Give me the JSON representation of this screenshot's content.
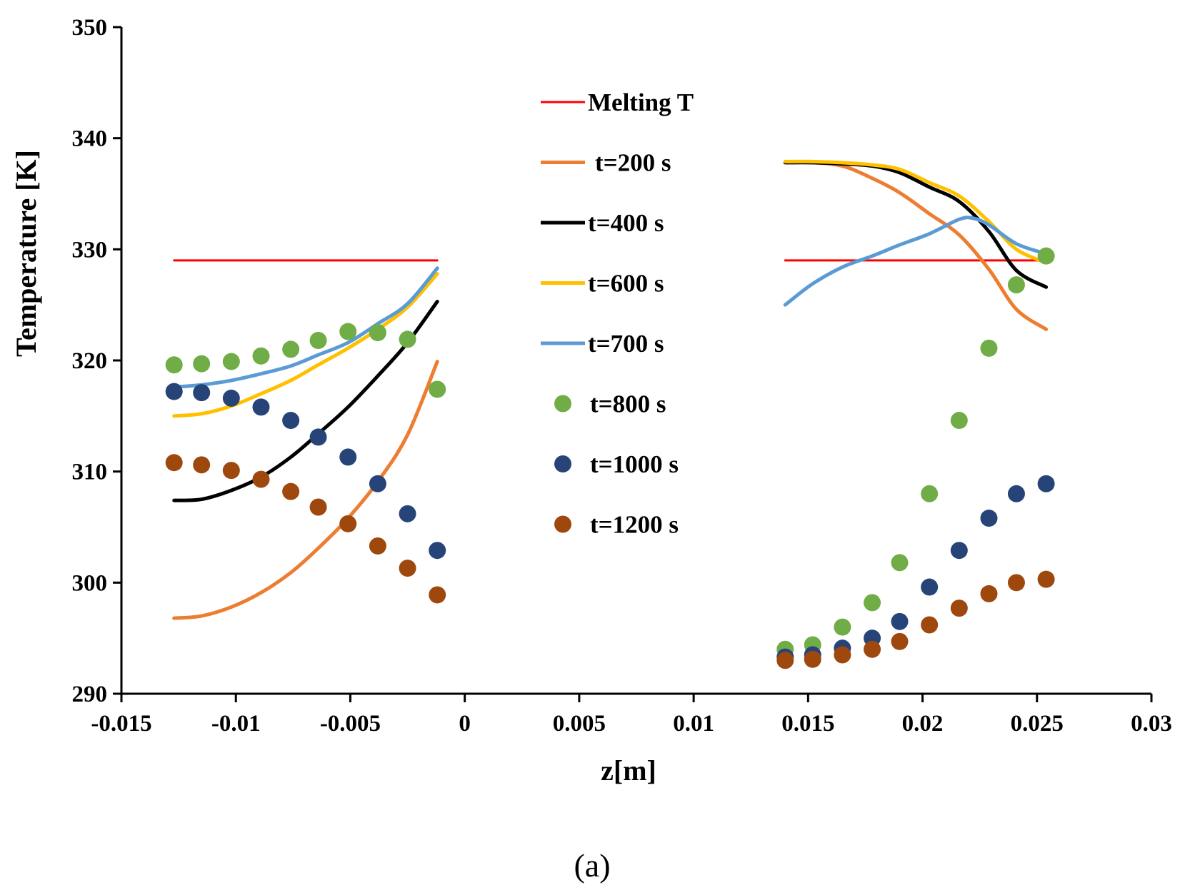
{
  "caption": "(a)",
  "chart_data": {
    "type": "line",
    "title": "",
    "xlabel": "z[m]",
    "ylabel": "Temperature [K]",
    "xlim": [
      -0.015,
      0.03
    ],
    "ylim": [
      290,
      350
    ],
    "xticks": [
      -0.015,
      -0.01,
      -0.005,
      0,
      0.005,
      0.01,
      0.015,
      0.02,
      0.025,
      0.03
    ],
    "xtick_labels": [
      "-0.015",
      "-0.01",
      "-0.005",
      "0",
      "0.005",
      "0.01",
      "0.015",
      "0.02",
      "0.025",
      "0.03"
    ],
    "yticks": [
      290,
      300,
      310,
      320,
      330,
      340,
      350
    ],
    "ytick_labels": [
      "290",
      "300",
      "310",
      "320",
      "330",
      "340",
      "350"
    ],
    "grid": false,
    "legend_position": "center",
    "series": [
      {
        "name": "Melting T",
        "style": "line",
        "color": "#ff0000",
        "segments": [
          [
            [
              -0.0127,
              329
            ],
            [
              -0.0012,
              329
            ]
          ],
          [
            [
              0.014,
              329
            ],
            [
              0.0254,
              329
            ]
          ]
        ]
      },
      {
        "name": "t=200 s",
        "style": "line",
        "color": "#ed7d31",
        "segments": [
          [
            [
              -0.0127,
              296.8
            ],
            [
              -0.0115,
              297.0
            ],
            [
              -0.0102,
              297.8
            ],
            [
              -0.0089,
              299.1
            ],
            [
              -0.0076,
              300.9
            ],
            [
              -0.0064,
              303.1
            ],
            [
              -0.0051,
              305.8
            ],
            [
              -0.0038,
              309.1
            ],
            [
              -0.0025,
              313.3
            ],
            [
              -0.0012,
              319.9
            ]
          ],
          [
            [
              0.014,
              337.8
            ],
            [
              0.0152,
              337.8
            ],
            [
              0.0165,
              337.5
            ],
            [
              0.0178,
              336.4
            ],
            [
              0.019,
              335.1
            ],
            [
              0.0203,
              333.2
            ],
            [
              0.0216,
              331.3
            ],
            [
              0.0229,
              328.2
            ],
            [
              0.0241,
              324.6
            ],
            [
              0.0254,
              322.8
            ]
          ]
        ]
      },
      {
        "name": "t=400 s",
        "style": "line",
        "color": "#000000",
        "segments": [
          [
            [
              -0.0127,
              307.4
            ],
            [
              -0.0115,
              307.5
            ],
            [
              -0.0102,
              308.3
            ],
            [
              -0.0089,
              309.5
            ],
            [
              -0.0076,
              311.3
            ],
            [
              -0.0064,
              313.4
            ],
            [
              -0.0051,
              315.8
            ],
            [
              -0.0038,
              318.6
            ],
            [
              -0.0025,
              321.6
            ],
            [
              -0.0012,
              325.3
            ]
          ],
          [
            [
              0.014,
              337.8
            ],
            [
              0.0152,
              337.8
            ],
            [
              0.0165,
              337.7
            ],
            [
              0.0178,
              337.5
            ],
            [
              0.019,
              336.9
            ],
            [
              0.0203,
              335.6
            ],
            [
              0.0216,
              334.3
            ],
            [
              0.0229,
              331.6
            ],
            [
              0.0241,
              328.1
            ],
            [
              0.0254,
              326.6
            ]
          ]
        ]
      },
      {
        "name": "t=600 s",
        "style": "line",
        "color": "#ffc000",
        "segments": [
          [
            [
              -0.0127,
              315.0
            ],
            [
              -0.0115,
              315.2
            ],
            [
              -0.0102,
              315.9
            ],
            [
              -0.0089,
              317.0
            ],
            [
              -0.0076,
              318.2
            ],
            [
              -0.0064,
              319.6
            ],
            [
              -0.0051,
              321.1
            ],
            [
              -0.0038,
              322.8
            ],
            [
              -0.0025,
              324.8
            ],
            [
              -0.0012,
              327.8
            ]
          ],
          [
            [
              0.014,
              337.9
            ],
            [
              0.0152,
              337.9
            ],
            [
              0.0165,
              337.8
            ],
            [
              0.0178,
              337.6
            ],
            [
              0.019,
              337.2
            ],
            [
              0.0203,
              336.0
            ],
            [
              0.0216,
              334.8
            ],
            [
              0.0229,
              332.5
            ],
            [
              0.0241,
              330.0
            ],
            [
              0.0254,
              328.8
            ]
          ]
        ]
      },
      {
        "name": "t=700 s",
        "style": "line",
        "color": "#5b9bd5",
        "segments": [
          [
            [
              -0.0127,
              317.6
            ],
            [
              -0.0115,
              317.8
            ],
            [
              -0.0102,
              318.2
            ],
            [
              -0.0089,
              318.8
            ],
            [
              -0.0076,
              319.5
            ],
            [
              -0.0064,
              320.5
            ],
            [
              -0.0051,
              321.6
            ],
            [
              -0.0038,
              323.3
            ],
            [
              -0.0025,
              325.1
            ],
            [
              -0.0012,
              328.3
            ]
          ],
          [
            [
              0.014,
              325.0
            ],
            [
              0.0152,
              326.9
            ],
            [
              0.0165,
              328.4
            ],
            [
              0.0178,
              329.4
            ],
            [
              0.019,
              330.4
            ],
            [
              0.0203,
              331.4
            ],
            [
              0.0216,
              332.7
            ],
            [
              0.0222,
              332.8
            ],
            [
              0.0229,
              332.2
            ],
            [
              0.0241,
              330.5
            ],
            [
              0.0254,
              329.6
            ]
          ]
        ]
      },
      {
        "name": "t=800 s",
        "style": "marker",
        "color": "#70ad47",
        "points": [
          [
            -0.0127,
            319.6
          ],
          [
            -0.0115,
            319.7
          ],
          [
            -0.0102,
            319.9
          ],
          [
            -0.0089,
            320.4
          ],
          [
            -0.0076,
            321.0
          ],
          [
            -0.0064,
            321.8
          ],
          [
            -0.0051,
            322.6
          ],
          [
            -0.0038,
            322.5
          ],
          [
            -0.0025,
            321.9
          ],
          [
            -0.0012,
            317.4
          ],
          [
            0.014,
            294.0
          ],
          [
            0.0152,
            294.4
          ],
          [
            0.0165,
            296.0
          ],
          [
            0.0178,
            298.2
          ],
          [
            0.019,
            301.8
          ],
          [
            0.0203,
            308.0
          ],
          [
            0.0216,
            314.6
          ],
          [
            0.0229,
            321.1
          ],
          [
            0.0241,
            326.8
          ],
          [
            0.0254,
            329.4
          ]
        ]
      },
      {
        "name": "t=1000 s",
        "style": "marker",
        "color": "#264478",
        "points": [
          [
            -0.0127,
            317.2
          ],
          [
            -0.0115,
            317.1
          ],
          [
            -0.0102,
            316.6
          ],
          [
            -0.0089,
            315.8
          ],
          [
            -0.0076,
            314.6
          ],
          [
            -0.0064,
            313.1
          ],
          [
            -0.0051,
            311.3
          ],
          [
            -0.0038,
            308.9
          ],
          [
            -0.0025,
            306.2
          ],
          [
            -0.0012,
            302.9
          ],
          [
            0.014,
            293.3
          ],
          [
            0.0152,
            293.5
          ],
          [
            0.0165,
            294.1
          ],
          [
            0.0178,
            295.0
          ],
          [
            0.019,
            296.5
          ],
          [
            0.0203,
            299.6
          ],
          [
            0.0216,
            302.9
          ],
          [
            0.0229,
            305.8
          ],
          [
            0.0241,
            308.0
          ],
          [
            0.0254,
            308.9
          ]
        ]
      },
      {
        "name": "t=1200 s",
        "style": "marker",
        "color": "#9e480e",
        "points": [
          [
            -0.0127,
            310.8
          ],
          [
            -0.0115,
            310.6
          ],
          [
            -0.0102,
            310.1
          ],
          [
            -0.0089,
            309.3
          ],
          [
            -0.0076,
            308.2
          ],
          [
            -0.0064,
            306.8
          ],
          [
            -0.0051,
            305.3
          ],
          [
            -0.0038,
            303.3
          ],
          [
            -0.0025,
            301.3
          ],
          [
            -0.0012,
            298.9
          ],
          [
            0.014,
            293.0
          ],
          [
            0.0152,
            293.1
          ],
          [
            0.0165,
            293.5
          ],
          [
            0.0178,
            294.0
          ],
          [
            0.019,
            294.7
          ],
          [
            0.0203,
            296.2
          ],
          [
            0.0216,
            297.7
          ],
          [
            0.0229,
            299.0
          ],
          [
            0.0241,
            300.0
          ],
          [
            0.0254,
            300.3
          ]
        ]
      }
    ]
  }
}
